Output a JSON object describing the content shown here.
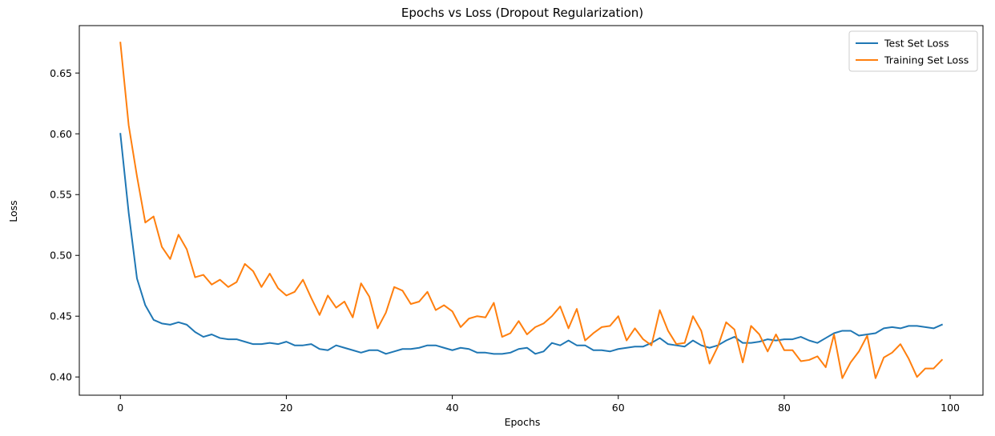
{
  "chart_data": {
    "type": "line",
    "title": "Epochs vs Loss (Dropout Regularization)",
    "xlabel": "Epochs",
    "ylabel": "Loss",
    "xlim": [
      -4.95,
      103.95
    ],
    "ylim": [
      0.385,
      0.689
    ],
    "xticks": [
      0,
      20,
      40,
      60,
      80,
      100
    ],
    "yticks": [
      0.4,
      0.45,
      0.5,
      0.55,
      0.6,
      0.65
    ],
    "xtick_labels": [
      "0",
      "20",
      "40",
      "60",
      "80",
      "100"
    ],
    "ytick_labels": [
      "0.40",
      "0.45",
      "0.50",
      "0.55",
      "0.60",
      "0.65"
    ],
    "grid": false,
    "legend_position": "top-right",
    "series": [
      {
        "name": "Test Set Loss",
        "color": "#1f77b4",
        "values": [
          0.6,
          0.535,
          0.481,
          0.459,
          0.447,
          0.444,
          0.443,
          0.445,
          0.443,
          0.437,
          0.433,
          0.435,
          0.432,
          0.431,
          0.431,
          0.429,
          0.427,
          0.427,
          0.428,
          0.427,
          0.429,
          0.426,
          0.426,
          0.427,
          0.423,
          0.422,
          0.426,
          0.424,
          0.422,
          0.42,
          0.422,
          0.422,
          0.419,
          0.421,
          0.423,
          0.423,
          0.424,
          0.426,
          0.426,
          0.424,
          0.422,
          0.424,
          0.423,
          0.42,
          0.42,
          0.419,
          0.419,
          0.42,
          0.423,
          0.424,
          0.419,
          0.421,
          0.428,
          0.426,
          0.43,
          0.426,
          0.426,
          0.422,
          0.422,
          0.421,
          0.423,
          0.424,
          0.425,
          0.425,
          0.428,
          0.432,
          0.427,
          0.426,
          0.425,
          0.43,
          0.426,
          0.424,
          0.426,
          0.43,
          0.433,
          0.428,
          0.428,
          0.429,
          0.431,
          0.43,
          0.431,
          0.431,
          0.433,
          0.43,
          0.428,
          0.432,
          0.436,
          0.438,
          0.438,
          0.434,
          0.435,
          0.436,
          0.44,
          0.441,
          0.44,
          0.442,
          0.442,
          0.441,
          0.44,
          0.443
        ]
      },
      {
        "name": "Training Set Loss",
        "color": "#ff7f0e",
        "values": [
          0.675,
          0.607,
          0.565,
          0.527,
          0.532,
          0.507,
          0.497,
          0.517,
          0.505,
          0.482,
          0.484,
          0.476,
          0.48,
          0.474,
          0.478,
          0.493,
          0.487,
          0.474,
          0.485,
          0.473,
          0.467,
          0.47,
          0.48,
          0.465,
          0.451,
          0.467,
          0.457,
          0.462,
          0.449,
          0.477,
          0.466,
          0.44,
          0.453,
          0.474,
          0.471,
          0.46,
          0.462,
          0.47,
          0.455,
          0.459,
          0.454,
          0.441,
          0.448,
          0.45,
          0.449,
          0.461,
          0.433,
          0.436,
          0.446,
          0.435,
          0.441,
          0.444,
          0.45,
          0.458,
          0.44,
          0.456,
          0.43,
          0.436,
          0.441,
          0.442,
          0.45,
          0.43,
          0.44,
          0.431,
          0.426,
          0.455,
          0.438,
          0.427,
          0.428,
          0.45,
          0.438,
          0.411,
          0.425,
          0.445,
          0.439,
          0.412,
          0.442,
          0.435,
          0.421,
          0.435,
          0.422,
          0.422,
          0.413,
          0.414,
          0.417,
          0.408,
          0.435,
          0.399,
          0.412,
          0.421,
          0.434,
          0.399,
          0.416,
          0.42,
          0.427,
          0.415,
          0.4,
          0.407,
          0.407,
          0.414
        ]
      }
    ]
  }
}
